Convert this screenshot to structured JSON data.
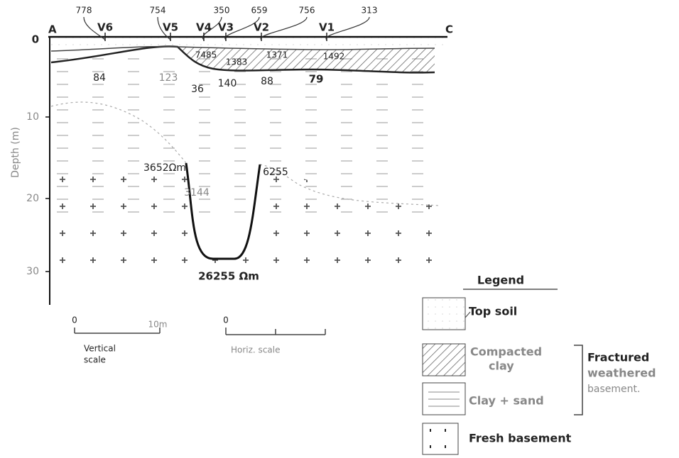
{
  "profile": {
    "start": "A",
    "end": "C",
    "stations": [
      {
        "label": "V6",
        "value": 778
      },
      {
        "label": "V5",
        "value": 754
      },
      {
        "label": "V4",
        "value": 350
      },
      {
        "label": "V3",
        "value": 659
      },
      {
        "label": "V2",
        "value": 756
      },
      {
        "label": "V1",
        "value": 313
      }
    ],
    "depth_axis": {
      "label": "Depth (m)",
      "ticks": [
        0,
        10,
        20,
        30
      ]
    },
    "layer_labels": [
      7485,
      1383,
      1371,
      1492,
      84,
      123,
      36,
      140,
      88,
      79,
      "3652Ωm",
      3144,
      6255,
      "26255 Ωm"
    ]
  },
  "scales": {
    "vertical": {
      "start": 0,
      "end": "10m",
      "label": [
        "Vertical",
        "scale"
      ]
    },
    "horizontal": {
      "start": 0,
      "label": "Horiz. scale"
    }
  },
  "legend": {
    "title": "Legend",
    "items": [
      {
        "label": [
          "Top soil"
        ]
      },
      {
        "label": [
          "Compacted",
          "clay"
        ]
      },
      {
        "label": [
          "Clay + sand"
        ]
      },
      {
        "label": [
          "Fresh basement"
        ]
      }
    ],
    "group_label": [
      "Fractured",
      "weathered",
      "basement."
    ]
  }
}
